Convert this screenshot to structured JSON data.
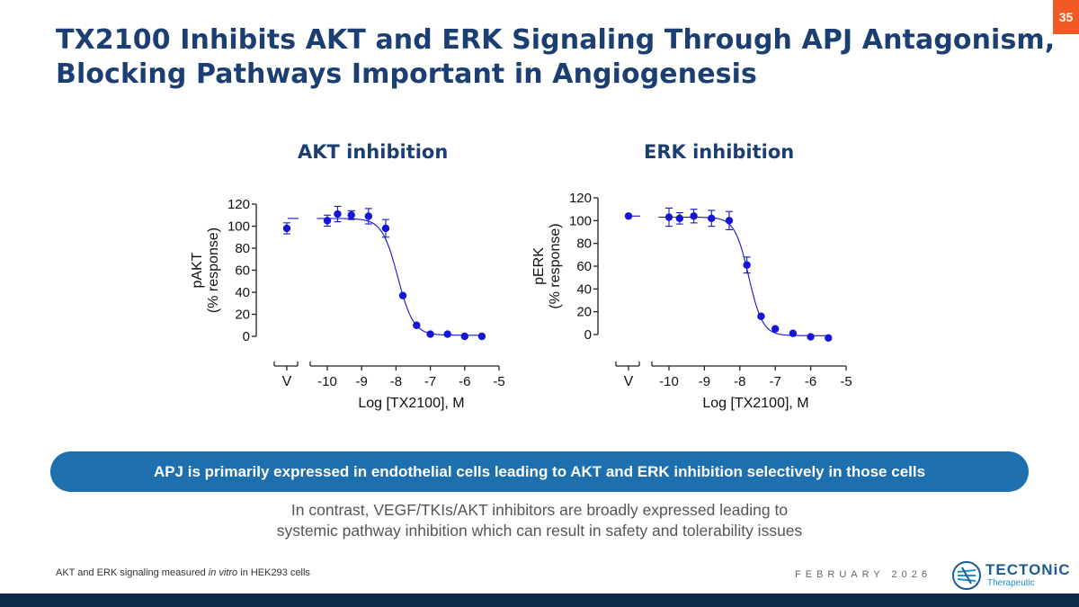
{
  "slide": {
    "number": "35",
    "title_line1": "TX2100 Inhibits AKT and ERK Signaling Through APJ Antagonism,",
    "title_line2": "Blocking Pathways Important in Angiogenesis",
    "banner": "APJ is primarily expressed in endothelial cells leading to AKT and ERK inhibition selectively in those cells",
    "note_line1": "In contrast, VEGF/TKIs/AKT inhibitors are broadly expressed leading to",
    "note_line2": "systemic pathway inhibition which can result in safety and tolerability issues",
    "footnote_pre": "AKT and ERK signaling measured ",
    "footnote_em": "in vitro",
    "footnote_post": " in HEK293 cells",
    "date": "FEBRUARY 2026",
    "logo_name": "TECTONiC",
    "logo_sub": "Therapeutic"
  },
  "colors": {
    "title": "#1b3f72",
    "accent": "#1e6fae",
    "data": "#1515d6",
    "slide_badge": "#f15a22"
  },
  "chart_data": [
    {
      "id": "akt",
      "type": "scatter",
      "title": "AKT inhibition",
      "ylabel_line1": "pAKT",
      "ylabel_line2": "(% response)",
      "xlabel": "Log [TX2100], M",
      "vehicle_label": "V",
      "ylim": [
        0,
        120
      ],
      "yticks": [
        0,
        20,
        40,
        60,
        80,
        100,
        120
      ],
      "xlim": [
        -10.5,
        -5
      ],
      "xticks": [
        -10,
        -9,
        -8,
        -7,
        -6,
        -5
      ],
      "xtick_labels": [
        "-10",
        "-9",
        "-8",
        "-7",
        "-6",
        "-5"
      ],
      "vehicle": {
        "value": 98,
        "error": 5,
        "line": 107
      },
      "points": [
        {
          "x": -10.0,
          "y": 105,
          "err": 5
        },
        {
          "x": -9.7,
          "y": 111,
          "err": 7
        },
        {
          "x": -9.3,
          "y": 110,
          "err": 4
        },
        {
          "x": -8.8,
          "y": 109,
          "err": 7
        },
        {
          "x": -8.3,
          "y": 98,
          "err": 8
        },
        {
          "x": -7.8,
          "y": 37,
          "err": 0
        },
        {
          "x": -7.4,
          "y": 10,
          "err": 0
        },
        {
          "x": -7.0,
          "y": 2,
          "err": 0
        },
        {
          "x": -6.5,
          "y": 2,
          "err": 0
        },
        {
          "x": -6.0,
          "y": 0,
          "err": 0
        },
        {
          "x": -5.5,
          "y": 0,
          "err": 0
        }
      ],
      "fit": {
        "top": 107,
        "bottom": 1,
        "logIC50": -7.95,
        "hill": 1.9
      }
    },
    {
      "id": "erk",
      "type": "scatter",
      "title": "ERK inhibition",
      "ylabel_line1": "pERK",
      "ylabel_line2": "(% response)",
      "xlabel": "Log [TX2100], M",
      "vehicle_label": "V",
      "ylim": [
        0,
        120
      ],
      "yticks": [
        0,
        20,
        40,
        60,
        80,
        100,
        120
      ],
      "xlim": [
        -10.5,
        -5
      ],
      "xticks": [
        -10,
        -9,
        -8,
        -7,
        -6,
        -5
      ],
      "xtick_labels": [
        "-10",
        "-9",
        "-8",
        "-7",
        "-6",
        "-5"
      ],
      "vehicle": {
        "value": 104,
        "error": 0,
        "line": 104
      },
      "points": [
        {
          "x": -10.0,
          "y": 103,
          "err": 8
        },
        {
          "x": -9.7,
          "y": 102,
          "err": 5
        },
        {
          "x": -9.3,
          "y": 104,
          "err": 6
        },
        {
          "x": -8.8,
          "y": 102,
          "err": 7
        },
        {
          "x": -8.3,
          "y": 100,
          "err": 8
        },
        {
          "x": -7.8,
          "y": 61,
          "err": 7
        },
        {
          "x": -7.4,
          "y": 16,
          "err": 0
        },
        {
          "x": -7.0,
          "y": 5,
          "err": 0
        },
        {
          "x": -6.5,
          "y": 1,
          "err": 0
        },
        {
          "x": -6.0,
          "y": -2,
          "err": 0
        },
        {
          "x": -5.5,
          "y": -3,
          "err": 0
        }
      ],
      "fit": {
        "top": 103,
        "bottom": -1,
        "logIC50": -7.75,
        "hill": 2.2
      }
    }
  ]
}
